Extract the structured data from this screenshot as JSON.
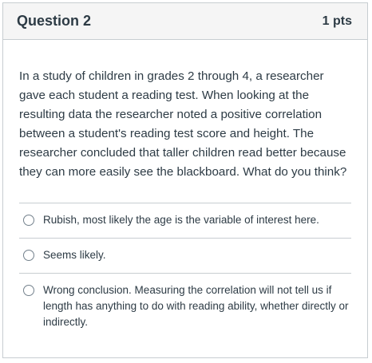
{
  "question": {
    "title": "Question 2",
    "points": "1 pts",
    "text": "In a study of children in grades 2 through 4, a researcher gave each student a reading test. When looking at the resulting data the researcher noted a positive correlation between a student's reading test score and height. The researcher concluded that taller children read better because they can more easily see the blackboard. What do you think?"
  },
  "answers": [
    {
      "label": "Rubish, most likely the age is the variable of interest here.",
      "selected": false
    },
    {
      "label": "Seems likely.",
      "selected": false
    },
    {
      "label": "Wrong conclusion. Measuring the correlation will not tell us if length has anything to do with reading ability, whether directly or indirectly.",
      "selected": false
    }
  ]
}
